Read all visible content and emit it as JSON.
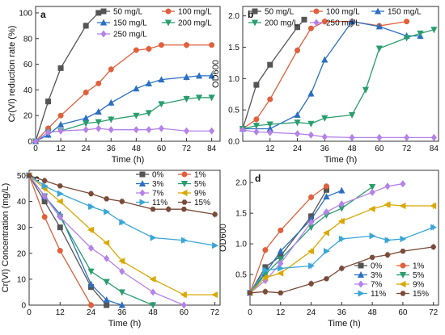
{
  "chart_data": [
    {
      "panel": "a",
      "type": "line",
      "xlabel": "Time (h)",
      "ylabel": "Cr(VI) reduction rate (%)",
      "xlim": [
        0,
        88
      ],
      "ylim": [
        0,
        105
      ],
      "xticks": [
        0,
        12,
        24,
        36,
        48,
        60,
        72,
        84
      ],
      "yticks": [
        0,
        20,
        40,
        60,
        80,
        100
      ],
      "legend_position": "top-right",
      "series": [
        {
          "name": "50  mg/L",
          "color": "#555555",
          "marker": "square",
          "x": [
            0,
            6,
            12,
            24,
            30
          ],
          "y": [
            0,
            31,
            57,
            90,
            100
          ]
        },
        {
          "name": "100 mg/L",
          "color": "#e0603c",
          "marker": "circle",
          "x": [
            0,
            6,
            12,
            24,
            30,
            36,
            48,
            54,
            60,
            72,
            84
          ],
          "y": [
            0,
            10,
            20,
            38,
            45,
            56,
            71,
            72,
            75,
            75,
            75
          ]
        },
        {
          "name": "150 mg/L",
          "color": "#2a6fc2",
          "marker": "triangle-up",
          "x": [
            0,
            6,
            12,
            24,
            30,
            36,
            48,
            54,
            60,
            72,
            78,
            84
          ],
          "y": [
            0,
            5,
            13,
            18,
            23,
            30,
            41,
            45,
            48,
            50,
            51,
            51
          ]
        },
        {
          "name": "200 mg/L",
          "color": "#2a9d6e",
          "marker": "triangle-down",
          "x": [
            0,
            6,
            12,
            24,
            30,
            36,
            48,
            54,
            60,
            72,
            78,
            84
          ],
          "y": [
            0,
            7,
            8,
            14,
            15,
            17,
            20,
            22,
            29,
            33,
            34,
            34
          ]
        },
        {
          "name": "250 mg/L",
          "color": "#b482e8",
          "marker": "diamond",
          "x": [
            0,
            6,
            12,
            24,
            30,
            36,
            48,
            54,
            60,
            72,
            84
          ],
          "y": [
            0,
            7,
            8,
            9,
            10,
            9,
            9,
            9,
            10,
            8,
            8
          ]
        }
      ]
    },
    {
      "panel": "b",
      "type": "line",
      "xlabel": "Time (h)",
      "ylabel": "OD600",
      "xlim": [
        0,
        86
      ],
      "ylim": [
        0,
        2.15
      ],
      "xticks": [
        12,
        24,
        36,
        48,
        60,
        72,
        84
      ],
      "yticks": [
        0.0,
        0.5,
        1.0,
        1.5,
        2.0
      ],
      "legend_position": "top",
      "series": [
        {
          "name": "50  mg/L",
          "color": "#555555",
          "marker": "square",
          "x": [
            0,
            6,
            12,
            24,
            27
          ],
          "y": [
            0.2,
            0.9,
            1.22,
            1.82,
            1.94
          ]
        },
        {
          "name": "100 mg/L",
          "color": "#e0603c",
          "marker": "circle",
          "x": [
            0,
            6,
            12,
            24,
            30,
            36,
            48,
            60,
            72
          ],
          "y": [
            0.2,
            0.35,
            0.67,
            1.45,
            1.8,
            1.91,
            1.91,
            1.84,
            1.91
          ]
        },
        {
          "name": "150 mg/L",
          "color": "#2a6fc2",
          "marker": "triangle-up",
          "x": [
            0,
            12,
            24,
            30,
            36,
            48,
            60,
            72,
            78
          ],
          "y": [
            0.2,
            0.2,
            0.42,
            0.76,
            1.3,
            1.91,
            1.83,
            1.68,
            1.68
          ]
        },
        {
          "name": "200 mg/L",
          "color": "#2a9d6e",
          "marker": "triangle-down",
          "x": [
            0,
            6,
            12,
            24,
            30,
            36,
            48,
            54,
            60,
            72,
            78,
            84
          ],
          "y": [
            0.2,
            0.25,
            0.27,
            0.3,
            0.28,
            0.37,
            0.42,
            0.82,
            1.48,
            1.65,
            1.72,
            1.78
          ]
        },
        {
          "name": "250 mg/L",
          "color": "#b482e8",
          "marker": "diamond",
          "x": [
            0,
            6,
            12,
            24,
            30,
            36,
            48,
            60,
            72,
            84
          ],
          "y": [
            0.18,
            0.15,
            0.14,
            0.12,
            0.1,
            0.07,
            0.06,
            0.06,
            0.06,
            0.06
          ]
        }
      ]
    },
    {
      "panel": "c",
      "type": "line",
      "xlabel": "Time (h)",
      "ylabel": "Cr(VI) Concentration (mg/L)",
      "xlim": [
        0,
        74
      ],
      "ylim": [
        0,
        52
      ],
      "xticks": [
        0,
        12,
        24,
        36,
        48,
        60,
        72
      ],
      "yticks": [
        0,
        10,
        20,
        30,
        40,
        50
      ],
      "legend_position": "top-right",
      "series": [
        {
          "name": "0%",
          "color": "#555555",
          "marker": "square",
          "x": [
            0,
            6,
            12,
            24,
            30
          ],
          "y": [
            50,
            40,
            30,
            7,
            0
          ]
        },
        {
          "name": "1%",
          "color": "#e0603c",
          "marker": "circle",
          "x": [
            0,
            6,
            12,
            24
          ],
          "y": [
            50,
            34,
            21,
            0
          ]
        },
        {
          "name": "3%",
          "color": "#2a6fc2",
          "marker": "triangle-up",
          "x": [
            0,
            6,
            12,
            24,
            30,
            36
          ],
          "y": [
            50,
            42,
            35,
            8,
            2,
            0
          ]
        },
        {
          "name": "5%",
          "color": "#2a9d6e",
          "marker": "triangle-down",
          "x": [
            0,
            6,
            12,
            24,
            30,
            36,
            48
          ],
          "y": [
            50,
            42,
            34,
            13,
            9,
            5,
            0
          ]
        },
        {
          "name": "7%",
          "color": "#b482e8",
          "marker": "diamond",
          "x": [
            0,
            6,
            12,
            24,
            30,
            36,
            48,
            60
          ],
          "y": [
            50,
            42,
            34,
            22,
            18,
            13,
            5,
            0
          ]
        },
        {
          "name": "9%",
          "color": "#d8a800",
          "marker": "triangle-left",
          "x": [
            0,
            6,
            12,
            24,
            30,
            36,
            48,
            60,
            72
          ],
          "y": [
            50,
            45,
            40,
            29,
            24,
            17,
            10,
            4,
            4
          ]
        },
        {
          "name": "11%",
          "color": "#3aa6d6",
          "marker": "triangle-right",
          "x": [
            0,
            6,
            12,
            24,
            30,
            36,
            48,
            60,
            72
          ],
          "y": [
            50,
            46,
            43,
            38,
            36,
            32,
            26,
            25,
            23
          ]
        },
        {
          "name": "15%",
          "color": "#7a4a3a",
          "marker": "hexagon",
          "x": [
            0,
            6,
            12,
            24,
            30,
            36,
            48,
            54,
            60,
            72
          ],
          "y": [
            50,
            48,
            46,
            43,
            41,
            40,
            37,
            37,
            37,
            35
          ]
        }
      ]
    },
    {
      "panel": "d",
      "type": "line",
      "xlabel": "Time (h)",
      "ylabel": "OD600",
      "xlim": [
        0,
        74
      ],
      "ylim": [
        0,
        2.2
      ],
      "xticks": [
        0,
        12,
        24,
        36,
        48,
        60,
        72
      ],
      "yticks": [
        0.5,
        1.0,
        1.5,
        2.0
      ],
      "legend_position": "bottom-right",
      "series": [
        {
          "name": "0%",
          "color": "#555555",
          "marker": "square",
          "x": [
            0,
            6,
            12,
            24,
            30
          ],
          "y": [
            0.2,
            0.62,
            0.8,
            1.45,
            1.88
          ]
        },
        {
          "name": "1%",
          "color": "#e0603c",
          "marker": "circle",
          "x": [
            0,
            6,
            12,
            24,
            30
          ],
          "y": [
            0.2,
            0.9,
            1.22,
            1.76,
            1.94
          ]
        },
        {
          "name": "3%",
          "color": "#2a6fc2",
          "marker": "triangle-up",
          "x": [
            0,
            6,
            12,
            24,
            30,
            36
          ],
          "y": [
            0.2,
            0.52,
            0.88,
            1.4,
            1.77,
            1.87
          ]
        },
        {
          "name": "5%",
          "color": "#2a9d6e",
          "marker": "triangle-down",
          "x": [
            0,
            6,
            12,
            24,
            30,
            36,
            48
          ],
          "y": [
            0.2,
            0.5,
            0.75,
            1.27,
            1.47,
            1.58,
            1.93
          ]
        },
        {
          "name": "7%",
          "color": "#b482e8",
          "marker": "diamond",
          "x": [
            0,
            6,
            12,
            24,
            30,
            36,
            48,
            54,
            60
          ],
          "y": [
            0.2,
            0.4,
            0.68,
            1.35,
            1.52,
            1.65,
            1.84,
            1.94,
            1.98
          ]
        },
        {
          "name": "9%",
          "color": "#d8a800",
          "marker": "triangle-left",
          "x": [
            0,
            6,
            12,
            24,
            30,
            36,
            48,
            54,
            60,
            72
          ],
          "y": [
            0.2,
            0.45,
            0.52,
            0.88,
            1.18,
            1.37,
            1.57,
            1.64,
            1.62,
            1.62
          ]
        },
        {
          "name": "11%",
          "color": "#3aa6d6",
          "marker": "triangle-right",
          "x": [
            0,
            6,
            12,
            24,
            30,
            36,
            48,
            54,
            60,
            72
          ],
          "y": [
            0.2,
            0.57,
            0.6,
            0.64,
            0.88,
            1.08,
            1.13,
            1.06,
            1.08,
            1.27
          ]
        },
        {
          "name": "15%",
          "color": "#7a4a3a",
          "marker": "hexagon",
          "x": [
            0,
            6,
            12,
            24,
            30,
            36,
            48,
            54,
            60,
            72
          ],
          "y": [
            0.2,
            0.22,
            0.2,
            0.35,
            0.43,
            0.6,
            0.78,
            0.82,
            0.88,
            0.95
          ]
        }
      ]
    }
  ]
}
